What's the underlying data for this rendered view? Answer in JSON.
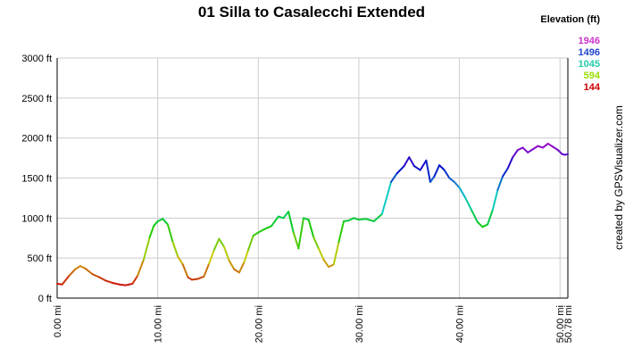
{
  "chart_data": {
    "type": "line",
    "title": "01 Silla to Casalecchi Extended",
    "xlabel": "",
    "ylabel": "",
    "xlim": [
      0,
      50.78
    ],
    "ylim": [
      0,
      3000
    ],
    "grid": true,
    "x_ticks": [
      0,
      10,
      20,
      30,
      40,
      50,
      50.78
    ],
    "x_tick_labels": [
      "0.00 mi",
      "10.00 mi",
      "20.00 mi",
      "30.00 mi",
      "40.00 mi",
      "50.00 mi",
      "50.78 mi"
    ],
    "y_ticks": [
      0,
      500,
      1000,
      1500,
      2000,
      2500,
      3000
    ],
    "y_tick_labels": [
      "0 ft",
      "500 ft",
      "1000 ft",
      "1500 ft",
      "2000 ft",
      "2500 ft",
      "3000 ft"
    ],
    "legend": {
      "title": "Elevation (ft)",
      "placement": "top-right",
      "entries": [
        {
          "label": "1946",
          "color": "#cc33cc"
        },
        {
          "label": "1496",
          "color": "#2244cc"
        },
        {
          "label": "1045",
          "color": "#22ccaa"
        },
        {
          "label": "594",
          "color": "#99dd00"
        },
        {
          "label": "144",
          "color": "#cc0000"
        }
      ]
    },
    "series": [
      {
        "x": [
          0,
          0.5,
          1.2,
          1.8,
          2.3,
          2.8,
          3.5,
          4.2,
          4.8,
          5.5,
          6.2,
          6.8,
          7.5,
          8.0,
          8.6,
          9.2,
          9.6,
          10.0,
          10.5,
          11.0,
          11.5,
          12.0,
          12.5,
          13.0,
          13.4,
          14.0,
          14.6,
          15.1,
          15.6,
          16.1,
          16.6,
          17.1,
          17.6,
          18.1,
          18.6,
          19.0,
          19.5,
          20.0,
          20.6,
          21.3,
          22.0,
          22.5,
          23.0,
          23.5,
          24.0,
          24.5,
          25.0,
          25.5,
          26.0,
          26.5,
          27.0,
          27.5,
          28.0,
          28.5,
          29.0,
          29.5,
          30.0,
          30.7,
          31.5,
          32.3,
          33.2,
          33.8,
          34.5,
          35.0,
          35.5,
          36.1,
          36.7,
          37.1,
          37.5,
          38.0,
          38.5,
          39.0,
          39.5,
          40.0,
          40.6,
          41.2,
          41.8,
          42.3,
          42.8,
          43.3,
          43.8,
          44.3,
          44.8,
          45.3,
          45.8,
          46.3,
          46.8,
          47.3,
          47.8,
          48.3,
          48.8,
          49.3,
          49.8,
          50.2,
          50.5,
          50.78
        ],
        "y": [
          180,
          170,
          280,
          360,
          400,
          370,
          300,
          260,
          220,
          190,
          170,
          160,
          180,
          280,
          480,
          760,
          900,
          960,
          990,
          920,
          700,
          520,
          420,
          260,
          230,
          240,
          270,
          430,
          600,
          740,
          640,
          470,
          360,
          320,
          450,
          600,
          780,
          820,
          860,
          900,
          1020,
          1000,
          1080,
          820,
          620,
          1000,
          980,
          760,
          620,
          480,
          390,
          420,
          700,
          960,
          970,
          1000,
          980,
          990,
          960,
          1050,
          1450,
          1560,
          1650,
          1760,
          1650,
          1600,
          1720,
          1450,
          1520,
          1660,
          1600,
          1500,
          1450,
          1380,
          1250,
          1100,
          950,
          890,
          920,
          1100,
          1350,
          1520,
          1620,
          1760,
          1850,
          1880,
          1820,
          1860,
          1900,
          1880,
          1930,
          1890,
          1850,
          1800,
          1790,
          1800
        ]
      }
    ]
  },
  "credit": "created by GPSVisualizer.com"
}
